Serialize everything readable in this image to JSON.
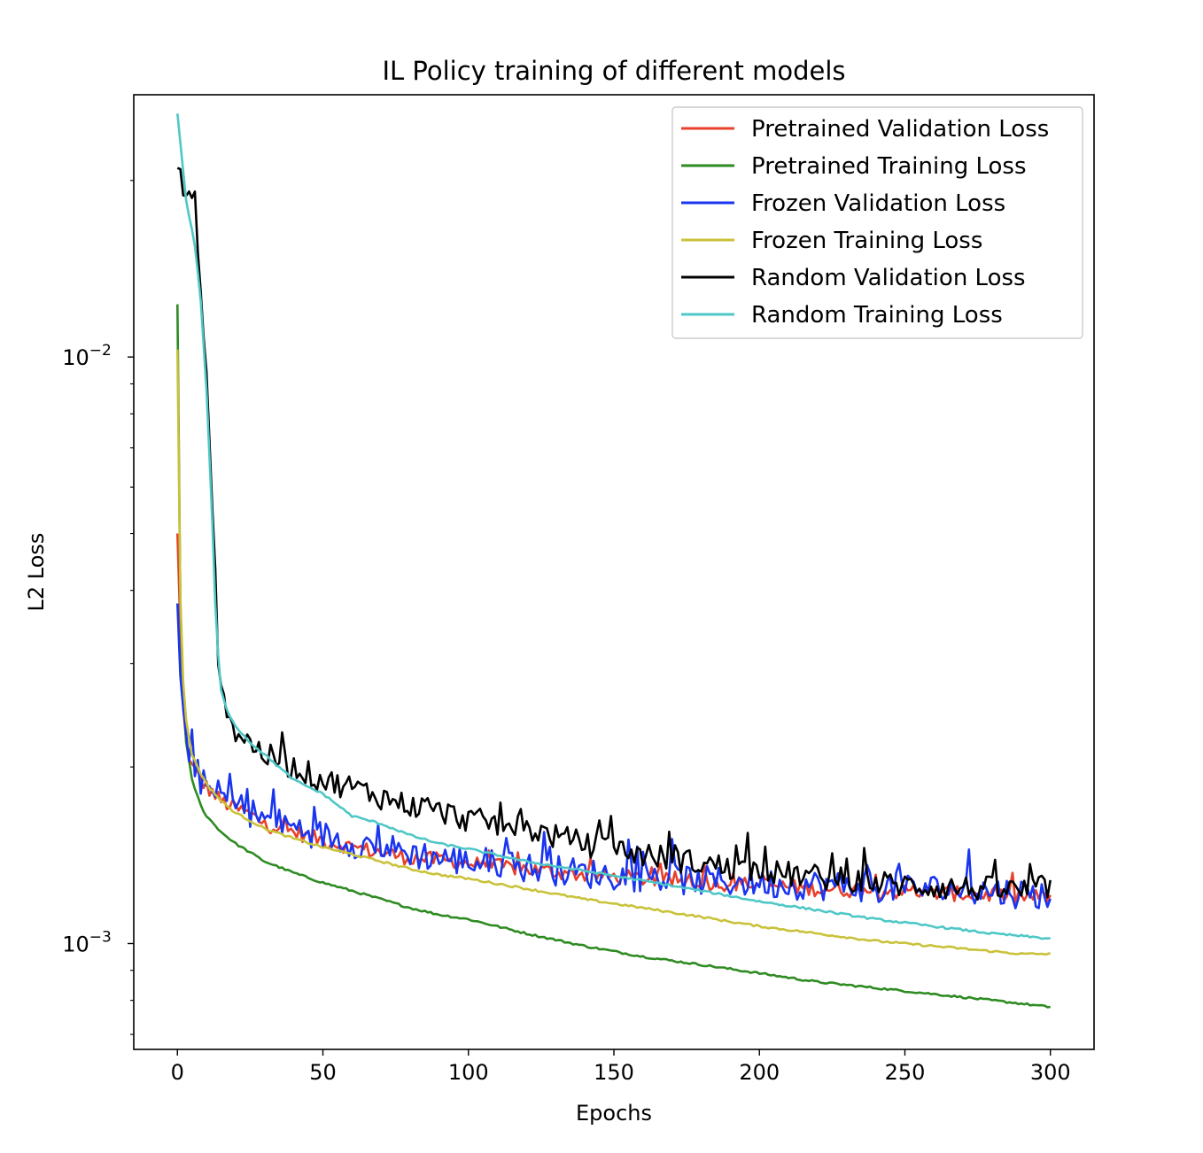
{
  "chart_data": {
    "type": "line",
    "title": "IL Policy training of different models",
    "xlabel": "Epochs",
    "ylabel": "L2 Loss",
    "x_ticks": [
      0,
      50,
      100,
      150,
      200,
      250,
      300
    ],
    "y_ticks": [
      {
        "value": 0.01,
        "base": "10",
        "exp": "−2"
      },
      {
        "value": 0.001,
        "base": "10",
        "exp": "−3"
      }
    ],
    "xlim": [
      -15,
      315
    ],
    "ylim": [
      0.00066,
      0.028
    ],
    "yscale": "log",
    "grid": false,
    "legend_position": "top-right",
    "series": [
      {
        "name": "Pretrained Validation Loss",
        "color": "#e8402a",
        "x": [
          0,
          1,
          2,
          3,
          5,
          8,
          10,
          15,
          20,
          25,
          30,
          40,
          50,
          60,
          70,
          80,
          90,
          100,
          120,
          140,
          160,
          180,
          200,
          220,
          240,
          260,
          280,
          290,
          299
        ],
        "y": [
          0.005,
          0.0034,
          0.0025,
          0.0022,
          0.002,
          0.0019,
          0.00185,
          0.00175,
          0.0017,
          0.00166,
          0.0016,
          0.00155,
          0.0015,
          0.00146,
          0.00143,
          0.0014,
          0.00139,
          0.00137,
          0.00134,
          0.00131,
          0.00129,
          0.00127,
          0.00126,
          0.00124,
          0.00123,
          0.00122,
          0.00121,
          0.0012,
          0.0012
        ],
        "noise": 0.03
      },
      {
        "name": "Pretrained Training Loss",
        "color": "#2e8b22",
        "x": [
          0,
          1,
          2,
          3,
          5,
          8,
          10,
          15,
          20,
          25,
          30,
          40,
          50,
          60,
          70,
          80,
          90,
          100,
          120,
          140,
          160,
          180,
          200,
          220,
          240,
          260,
          280,
          290,
          299
        ],
        "y": [
          0.0123,
          0.0038,
          0.0027,
          0.0022,
          0.0019,
          0.00172,
          0.00165,
          0.00155,
          0.00148,
          0.00143,
          0.00138,
          0.00132,
          0.00127,
          0.00123,
          0.00119,
          0.00115,
          0.00112,
          0.0011,
          0.00104,
          0.00099,
          0.00095,
          0.00092,
          0.00089,
          0.00086,
          0.00084,
          0.00082,
          0.0008,
          0.00079,
          0.00078
        ],
        "noise": 0.004
      },
      {
        "name": "Frozen Validation Loss",
        "color": "#1a35f0",
        "x": [
          0,
          1,
          2,
          3,
          5,
          8,
          10,
          15,
          20,
          25,
          30,
          40,
          50,
          60,
          70,
          80,
          90,
          100,
          120,
          140,
          160,
          180,
          200,
          220,
          240,
          260,
          280,
          290,
          299
        ],
        "y": [
          0.0038,
          0.0029,
          0.0025,
          0.0022,
          0.00205,
          0.0019,
          0.00185,
          0.00178,
          0.00172,
          0.00168,
          0.00163,
          0.00158,
          0.00153,
          0.00149,
          0.00146,
          0.00143,
          0.0014,
          0.00138,
          0.00135,
          0.00132,
          0.0013,
          0.00128,
          0.00127,
          0.00126,
          0.00125,
          0.00124,
          0.00123,
          0.00122,
          0.00121
        ],
        "noise": 0.06
      },
      {
        "name": "Frozen Training Loss",
        "color": "#c9c23a",
        "x": [
          0,
          1,
          2,
          3,
          5,
          8,
          10,
          15,
          20,
          25,
          30,
          40,
          50,
          60,
          70,
          80,
          90,
          100,
          120,
          140,
          160,
          180,
          200,
          220,
          240,
          260,
          280,
          290,
          299
        ],
        "y": [
          0.0103,
          0.0039,
          0.0028,
          0.0024,
          0.0021,
          0.00195,
          0.00187,
          0.00175,
          0.00167,
          0.00162,
          0.00157,
          0.00151,
          0.00146,
          0.00142,
          0.00138,
          0.00134,
          0.00131,
          0.00129,
          0.00124,
          0.00119,
          0.00115,
          0.00111,
          0.00107,
          0.00104,
          0.00101,
          0.00099,
          0.00097,
          0.00096,
          0.00096
        ],
        "noise": 0.004
      },
      {
        "name": "Random Validation Loss",
        "color": "#000000",
        "x": [
          0,
          3,
          6,
          8,
          10,
          12,
          13,
          14,
          15,
          17,
          20,
          25,
          30,
          40,
          50,
          60,
          70,
          80,
          90,
          100,
          120,
          140,
          160,
          180,
          200,
          220,
          240,
          260,
          280,
          290,
          299
        ],
        "y": [
          0.021,
          0.019,
          0.0175,
          0.0135,
          0.009,
          0.0055,
          0.0042,
          0.003,
          0.0029,
          0.0025,
          0.0023,
          0.0022,
          0.0021,
          0.002,
          0.0019,
          0.00185,
          0.00178,
          0.00172,
          0.00168,
          0.00163,
          0.00157,
          0.00148,
          0.00142,
          0.00137,
          0.00133,
          0.0013,
          0.00127,
          0.00125,
          0.00124,
          0.00123,
          0.00125
        ],
        "noise": 0.05
      },
      {
        "name": "Random Training Loss",
        "color": "#4fc7c7",
        "x": [
          0,
          3,
          6,
          8,
          10,
          12,
          13,
          14,
          15,
          17,
          20,
          25,
          30,
          40,
          50,
          60,
          70,
          80,
          90,
          100,
          120,
          140,
          160,
          180,
          200,
          220,
          240,
          260,
          280,
          290,
          299
        ],
        "y": [
          0.026,
          0.0185,
          0.0155,
          0.0125,
          0.0088,
          0.0052,
          0.0038,
          0.0031,
          0.0027,
          0.0025,
          0.00235,
          0.0022,
          0.0021,
          0.0019,
          0.0018,
          0.00165,
          0.0016,
          0.00153,
          0.00148,
          0.00145,
          0.00138,
          0.00133,
          0.00128,
          0.00123,
          0.00118,
          0.00114,
          0.0011,
          0.00107,
          0.00104,
          0.00103,
          0.00102
        ],
        "noise": 0.004
      }
    ]
  }
}
